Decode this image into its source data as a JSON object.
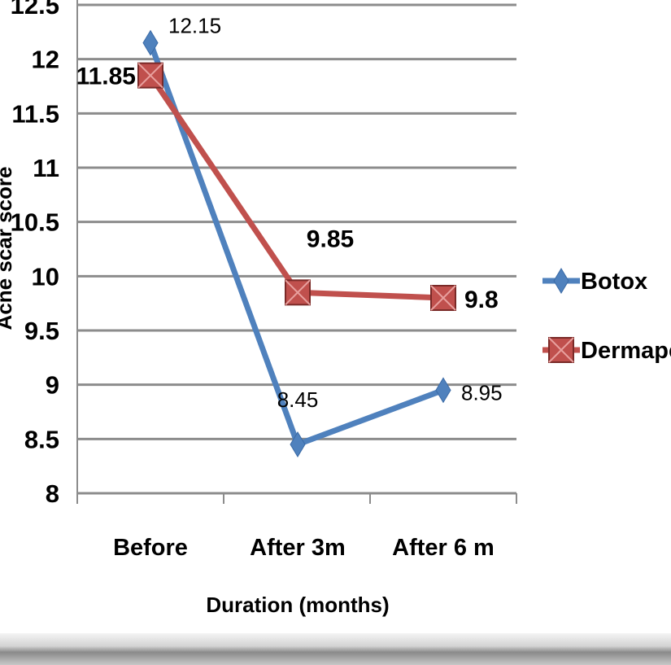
{
  "chart_data": {
    "type": "line",
    "categories": [
      "Before",
      "After 3m",
      "After 6 m"
    ],
    "series": [
      {
        "name": "Botox",
        "values": [
          12.15,
          8.45,
          8.95
        ],
        "labels": [
          "12.15",
          "8.45",
          "8.95"
        ],
        "color": "#4F81BD",
        "marker": "diamond"
      },
      {
        "name": "Dermapen",
        "values": [
          11.85,
          9.85,
          9.8
        ],
        "labels": [
          "11.85",
          "9.85",
          "9.8"
        ],
        "color": "#C0504D",
        "marker": "square"
      }
    ],
    "xlabel": "Duration (months)",
    "ylabel": "Acne scar score",
    "ylim": [
      8,
      12.5
    ],
    "yticks": [
      "8",
      "8.5",
      "9",
      "9.5",
      "10",
      "10.5",
      "11",
      "11.5",
      "12",
      "12.5"
    ],
    "grid": true,
    "legend_position": "right"
  }
}
